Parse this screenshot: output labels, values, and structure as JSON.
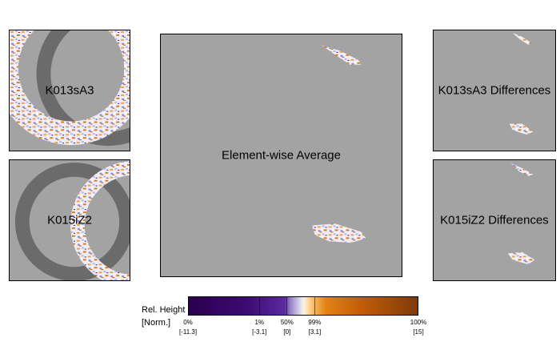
{
  "panels": {
    "top_left": {
      "label": "K013sA3"
    },
    "bottom_left": {
      "label": "K015iZ2"
    },
    "center": {
      "label": "Element-wise Average"
    },
    "top_right": {
      "label": "K013sA3 Differences"
    },
    "bottom_right": {
      "label": "K015iZ2 Differences"
    }
  },
  "colorbar": {
    "title_line1": "Rel. Height",
    "title_line2": "[Norm.]",
    "ticks": [
      {
        "pct": "0%",
        "value": "[-11.3]",
        "position": 0
      },
      {
        "pct": "1%",
        "value": "[-3.1]",
        "position": 0.31
      },
      {
        "pct": "50%",
        "value": "[0]",
        "position": 0.43
      },
      {
        "pct": "99%",
        "value": "[3.1]",
        "position": 0.55
      },
      {
        "pct": "100%",
        "value": "[15]",
        "position": 1.0
      }
    ],
    "colors": {
      "low": "#2a004f",
      "mid": "#f7f7f7",
      "high": "#7f3b08"
    }
  },
  "colors": {
    "background": "#a3a3a3",
    "ring_shadow": "#6b6b6b"
  }
}
